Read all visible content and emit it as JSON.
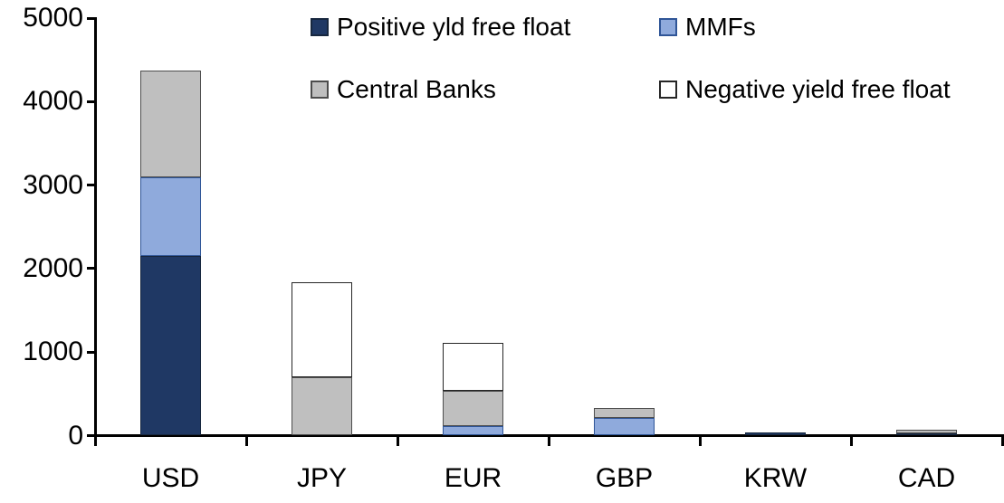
{
  "chart_data": {
    "type": "bar",
    "subtype": "stacked-vertical",
    "title": "",
    "xlabel": "",
    "ylabel": "",
    "categories": [
      "USD",
      "JPY",
      "EUR",
      "GBP",
      "KRW",
      "CAD"
    ],
    "series": [
      {
        "name": "Positive yld free float",
        "color": "#1F3864",
        "border_color": "#17273F",
        "values": [
          2150,
          0,
          0,
          0,
          40,
          30
        ]
      },
      {
        "name": "MMFs",
        "color": "#8FAADC",
        "border_color": "#2F5597",
        "values": [
          940,
          0,
          110,
          210,
          0,
          0
        ]
      },
      {
        "name": "Central Banks",
        "color": "#BFBFBF",
        "border_color": "#4D4D4D",
        "values": [
          1280,
          700,
          430,
          120,
          0,
          40
        ]
      },
      {
        "name": "Negative yield free float",
        "color": "#FFFFFF",
        "border_color": "#262626",
        "values": [
          0,
          1140,
          570,
          0,
          0,
          0
        ]
      }
    ],
    "totals": [
      4370,
      1840,
      1110,
      330,
      40,
      70
    ],
    "ylim": [
      0,
      5000
    ],
    "yticks": [
      0,
      1000,
      2000,
      3000,
      4000,
      5000
    ],
    "ytick_labels": [
      "0",
      "1000",
      "2000",
      "3000",
      "4000",
      "5000"
    ],
    "grid": false,
    "legend_position": "top",
    "legend_columns": 2
  }
}
